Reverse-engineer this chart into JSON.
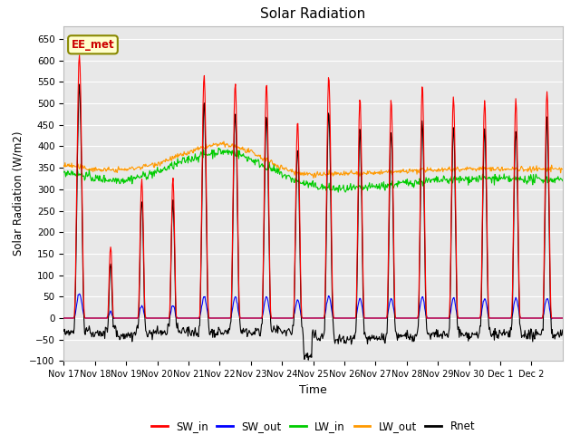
{
  "title": "Solar Radiation",
  "xlabel": "Time",
  "ylabel": "Solar Radiation (W/m2)",
  "ylim": [
    -100,
    680
  ],
  "yticks": [
    -100,
    -50,
    0,
    50,
    100,
    150,
    200,
    250,
    300,
    350,
    400,
    450,
    500,
    550,
    600,
    650
  ],
  "annotation_text": "EE_met",
  "annotation_facecolor": "#ffffcc",
  "annotation_edgecolor": "#888800",
  "annotation_textcolor": "#cc0000",
  "colors": {
    "SW_in": "#ff0000",
    "SW_out": "#0000ff",
    "LW_in": "#00cc00",
    "LW_out": "#ff9900",
    "Rnet": "#000000"
  },
  "legend_labels": [
    "SW_in",
    "SW_out",
    "LW_in",
    "LW_out",
    "Rnet"
  ],
  "background_plot": "#e8e8e8",
  "background_fig": "#ffffff",
  "grid_color": "#ffffff",
  "tick_labels": [
    "Nov 17",
    "Nov 18",
    "Nov 19",
    "Nov 20",
    "Nov 21",
    "Nov 22",
    "Nov 23",
    "Nov 24",
    "Nov 25",
    "Nov 26",
    "Nov 27",
    "Nov 28",
    "Nov 29",
    "Nov 30",
    "Dec 1",
    "Dec 2"
  ]
}
